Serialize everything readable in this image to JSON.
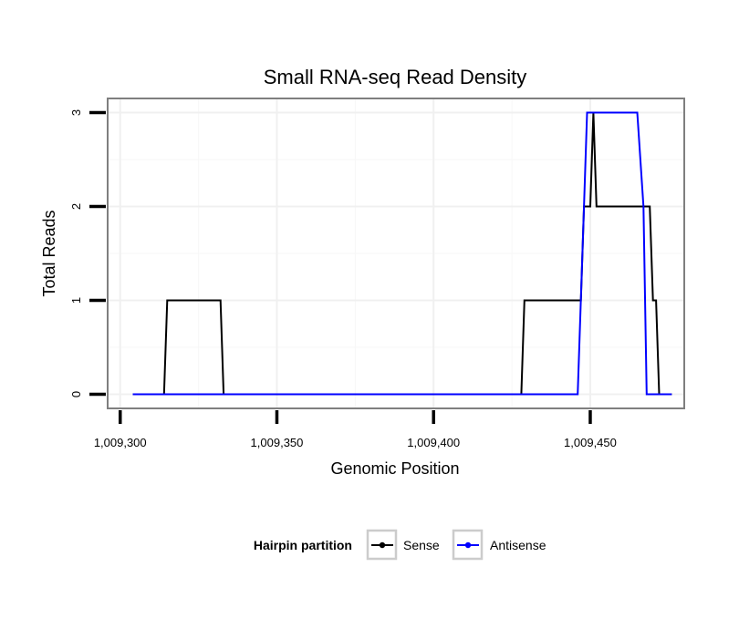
{
  "chart_data": {
    "type": "line",
    "title": "Small RNA-seq Read Density",
    "xlabel": "Genomic Position",
    "ylabel": "Total Reads",
    "xlim": [
      1009296,
      1009480
    ],
    "ylim": [
      -0.15,
      3.15
    ],
    "xticks": [
      1009300,
      1009350,
      1009400,
      1009450
    ],
    "xtick_labels": [
      "1,009,300",
      "1,009,350",
      "1,009,400",
      "1,009,450"
    ],
    "yticks": [
      0,
      1,
      2,
      3
    ],
    "ytick_labels": [
      "0",
      "1",
      "2",
      "3"
    ],
    "grid": true,
    "legend": {
      "title": "Hairpin partition",
      "position": "bottom",
      "entries": [
        {
          "name": "Sense",
          "color": "#000000"
        },
        {
          "name": "Antisense",
          "color": "#0000ff"
        }
      ]
    },
    "series": [
      {
        "name": "Sense",
        "color": "#000000",
        "x": [
          1009304,
          1009314,
          1009315,
          1009332,
          1009333,
          1009428,
          1009429,
          1009447,
          1009448,
          1009450,
          1009451,
          1009452,
          1009469,
          1009470,
          1009471,
          1009472,
          1009476
        ],
        "y": [
          0,
          0,
          1,
          1,
          0,
          0,
          1,
          1,
          2,
          2,
          3,
          2,
          2,
          1,
          1,
          0,
          0
        ]
      },
      {
        "name": "Antisense",
        "color": "#0000ff",
        "x": [
          1009304,
          1009446,
          1009448,
          1009449,
          1009465,
          1009467,
          1009468,
          1009476
        ],
        "y": [
          0,
          0,
          2,
          3,
          3,
          2,
          0,
          0
        ]
      }
    ]
  }
}
